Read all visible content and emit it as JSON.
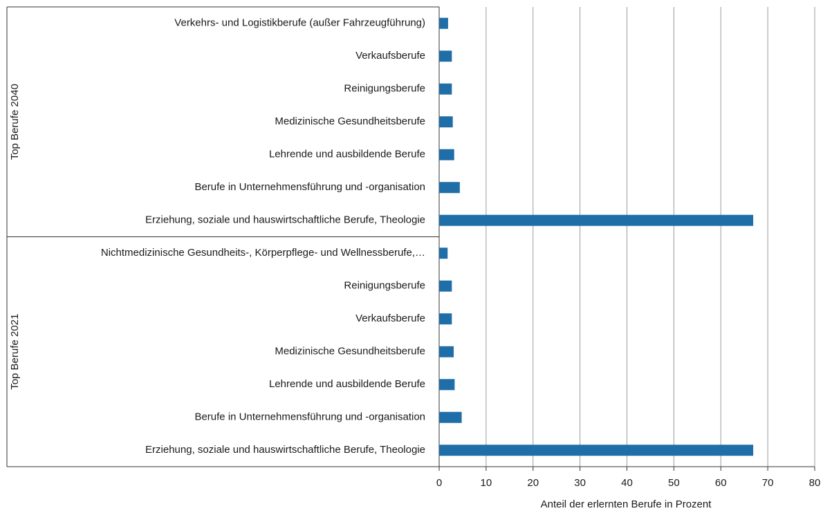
{
  "chart_data": {
    "type": "grouped-bar",
    "groups": [
      {
        "name": "Top Berufe 2040",
        "categories": [
          "Verkehrs- und Logistikberufe (außer Fahrzeugführung)",
          "Verkaufsberufe",
          "Reinigungsberufe",
          "Medizinische Gesundheitsberufe",
          "Lehrende und ausbildende Berufe",
          "Berufe in Unternehmensführung und -organisation",
          "Erziehung, soziale und hauswirtschaftliche Berufe, Theologie"
        ],
        "values": [
          1.9,
          2.7,
          2.7,
          2.9,
          3.2,
          4.4,
          66.9
        ]
      },
      {
        "name": "Top Berufe 2021",
        "categories": [
          "Nichtmedizinische Gesundheits-, Körperpflege- und Wellnessberufe,…",
          "Reinigungsberufe",
          "Verkaufsberufe",
          "Medizinische Gesundheitsberufe",
          "Lehrende und ausbildende Berufe",
          "Berufe in Unternehmensführung und -organisation",
          "Erziehung, soziale und hauswirtschaftliche Berufe, Theologie"
        ],
        "values": [
          1.8,
          2.7,
          2.7,
          3.1,
          3.3,
          4.8,
          66.9
        ]
      }
    ],
    "xlabel": "Anteil der erlernten Berufe in Prozent",
    "xlim": [
      0,
      80
    ],
    "xticks": [
      0,
      10,
      20,
      30,
      40,
      50,
      60,
      70,
      80
    ],
    "color": "#1f6ea8",
    "grid": true
  }
}
